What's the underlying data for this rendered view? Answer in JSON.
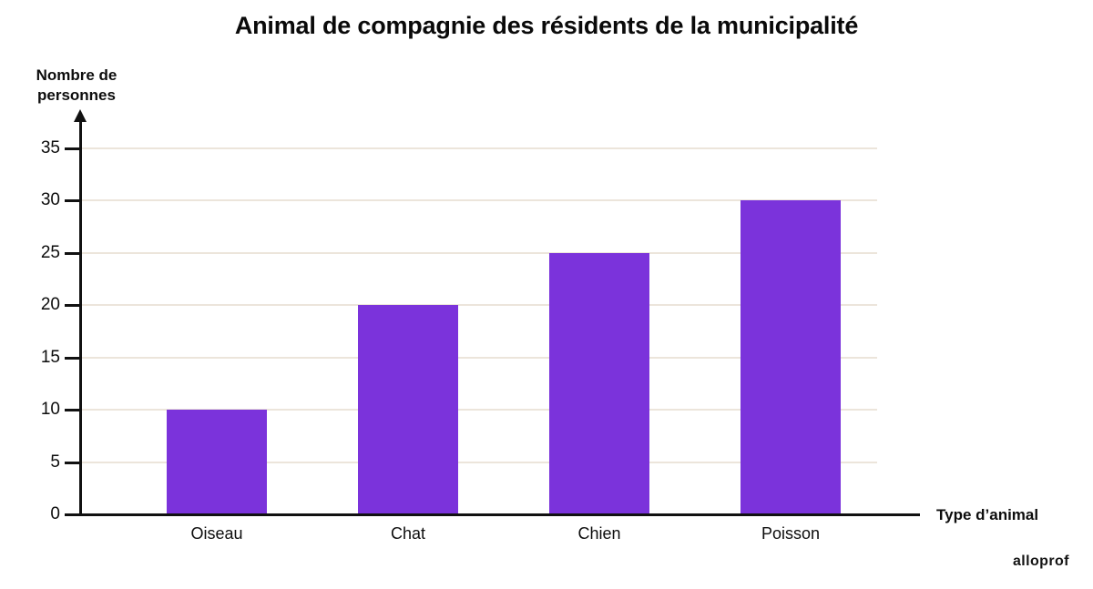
{
  "title": "Animal de compagnie des résidents de la municipalité",
  "y_axis_label": "Nombre de\npersonnes",
  "x_axis_label": "Type d’animal",
  "watermark": "alloprof",
  "chart_data": {
    "type": "bar",
    "title": "Animal de compagnie des résidents de la municipalité",
    "categories": [
      "Oiseau",
      "Chat",
      "Chien",
      "Poisson"
    ],
    "values": [
      10,
      20,
      25,
      30
    ],
    "xlabel": "Type d’animal",
    "ylabel": "Nombre de personnes",
    "ylim": [
      0,
      35
    ],
    "yticks": [
      0,
      5,
      10,
      15,
      20,
      25,
      30,
      35
    ],
    "grid": true,
    "legend": false,
    "bar_color": "#7B33DB",
    "gridline_color": "#ECE5DB",
    "axis_color": "#111111"
  }
}
